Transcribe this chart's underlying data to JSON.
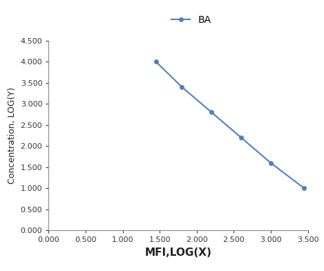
{
  "x": [
    1.45,
    1.8,
    2.2,
    2.6,
    3.0,
    3.45
  ],
  "y": [
    4.0,
    3.4,
    2.8,
    2.2,
    1.6,
    1.0
  ],
  "line_color": "#4f81bd",
  "marker": "o",
  "marker_size": 4,
  "line_width": 1.5,
  "legend_label": "BA",
  "xlabel": "MFI,LOG(X)",
  "ylabel": "Concentration, LOG(Y)",
  "xlim": [
    0.0,
    3.5
  ],
  "ylim": [
    0.0,
    4.5
  ],
  "xticks": [
    0.0,
    0.5,
    1.0,
    1.5,
    2.0,
    2.5,
    3.0,
    3.5
  ],
  "yticks": [
    0.0,
    0.5,
    1.0,
    1.5,
    2.0,
    2.5,
    3.0,
    3.5,
    4.0,
    4.5
  ],
  "xlabel_fontsize": 11,
  "ylabel_fontsize": 9,
  "legend_fontsize": 10,
  "tick_fontsize": 8,
  "background_color": "#ffffff"
}
